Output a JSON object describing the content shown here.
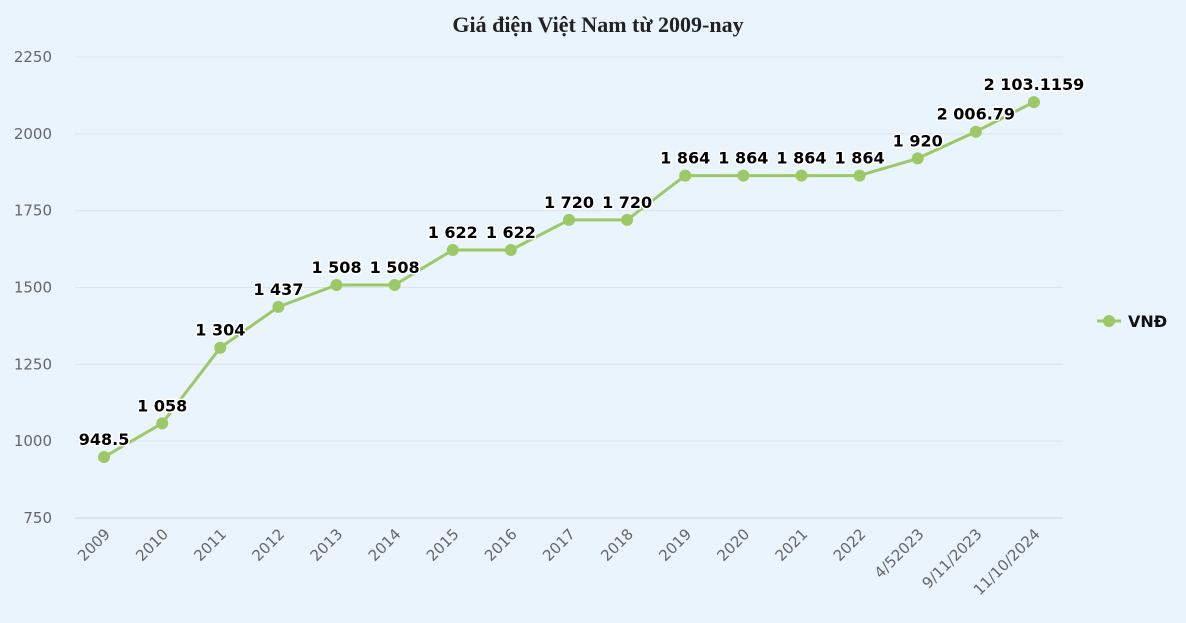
{
  "chart_data": {
    "type": "line",
    "title": "Giá điện Việt Nam từ 2009-nay",
    "xlabel": "",
    "ylabel": "",
    "ylim": [
      750,
      2250
    ],
    "yticks": [
      "750",
      "1000",
      "1250",
      "1500",
      "1750",
      "2000",
      "2250"
    ],
    "grid": true,
    "legend_position": "right",
    "categories": [
      "2009",
      "2010",
      "2011",
      "2012",
      "2013",
      "2014",
      "2015",
      "2016",
      "2017",
      "2018",
      "2019",
      "2020",
      "2021",
      "2022",
      "4/52023",
      "9/11/2023",
      "11/10/2024"
    ],
    "series": [
      {
        "name": "VNĐ",
        "color": "#9dc866",
        "values": [
          948.5,
          1058,
          1304,
          1437,
          1508,
          1508,
          1622,
          1622,
          1720,
          1720,
          1864,
          1864,
          1864,
          1864,
          1920,
          2006.79,
          2103.1159
        ],
        "data_labels": [
          "948.5",
          "1 058",
          "1 304",
          "1 437",
          "1 508",
          "1 508",
          "1 622",
          "1 622",
          "1 720",
          "1 720",
          "1 864",
          "1 864",
          "1 864",
          "1 864",
          "1 920",
          "2 006.79",
          "2 103.1159"
        ]
      }
    ]
  }
}
